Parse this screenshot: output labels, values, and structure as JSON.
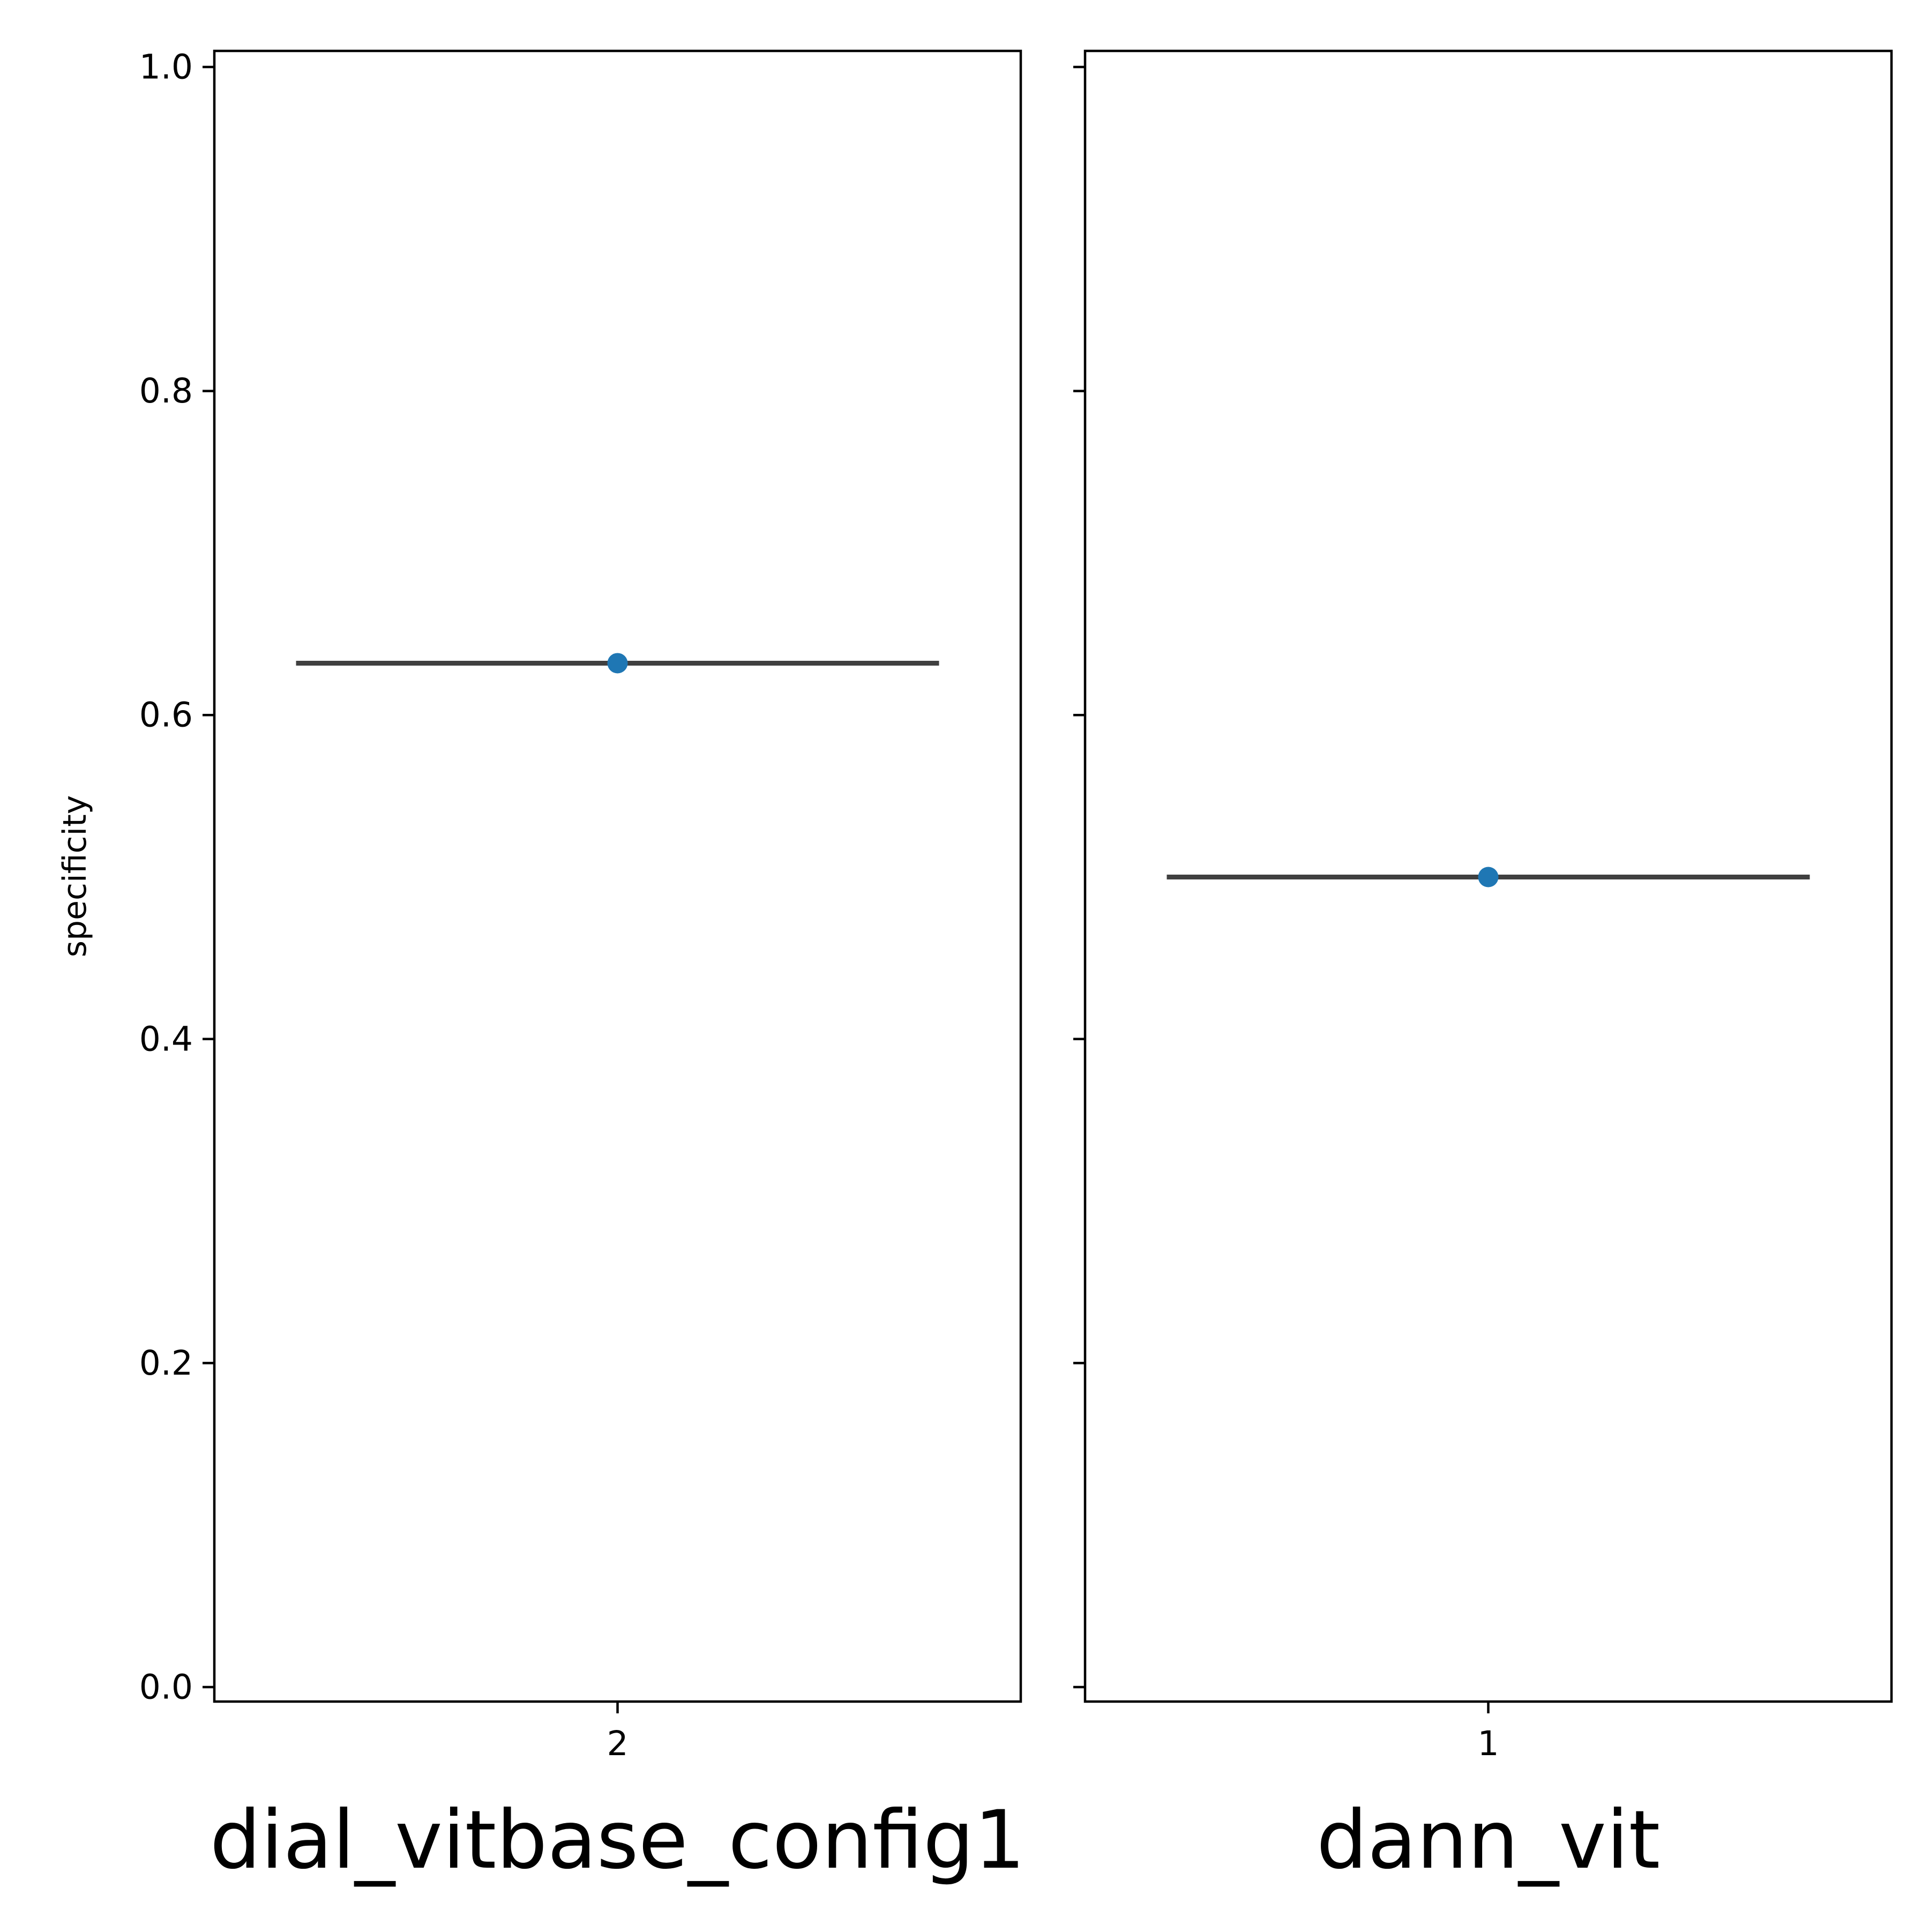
{
  "chart_data": {
    "type": "scatter",
    "ylabel": "specificity",
    "ylim": [
      0.0,
      1.0
    ],
    "y_ticks": [
      "0.0",
      "0.2",
      "0.4",
      "0.6",
      "0.8",
      "1.0"
    ],
    "grid": false,
    "colors": {
      "point": "#1f77b4",
      "line": "#404040",
      "axes": "#000000"
    },
    "panels": [
      {
        "facet_label": "dial_vitbase_config1",
        "x_tick": "2",
        "value": 0.632,
        "error_low": 0.632,
        "error_high": 0.632
      },
      {
        "facet_label": "dann_vit",
        "x_tick": "1",
        "value": 0.5,
        "error_low": 0.5,
        "error_high": 0.5
      }
    ]
  }
}
